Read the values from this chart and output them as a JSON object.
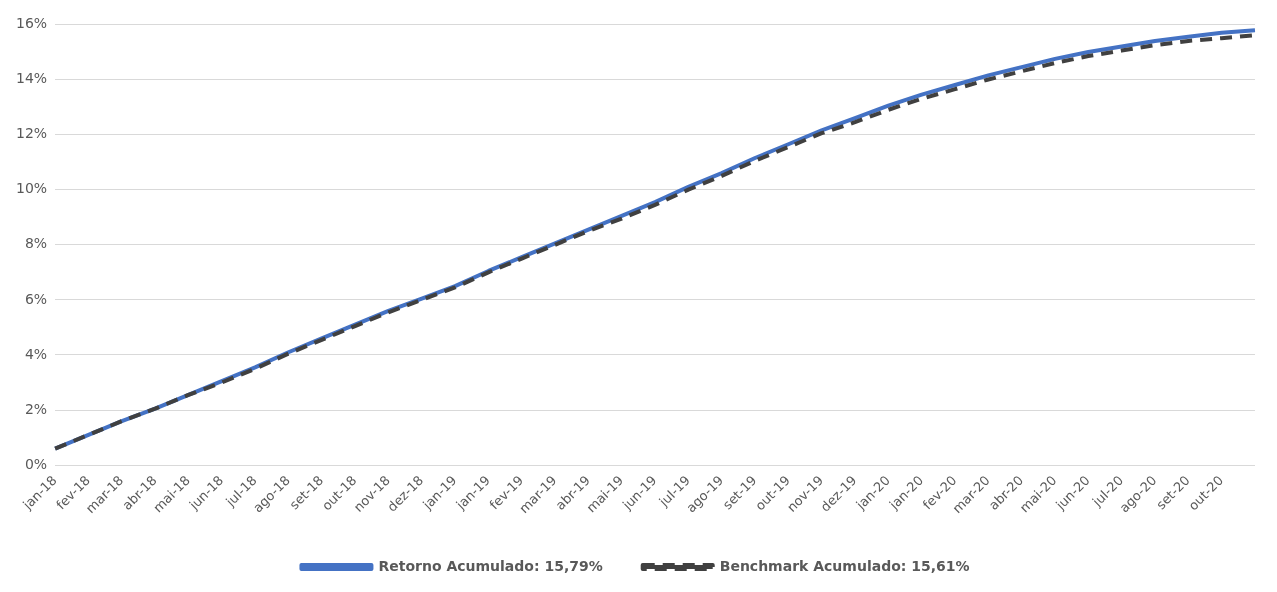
{
  "chart_data": {
    "type": "line",
    "categories": [
      "jan-18",
      "fev-18",
      "mar-18",
      "abr-18",
      "mai-18",
      "jun-18",
      "jul-18",
      "ago-18",
      "set-18",
      "out-18",
      "nov-18",
      "dez-18",
      "jan-19",
      "jan-19",
      "fev-19",
      "mar-19",
      "abr-19",
      "mai-19",
      "jun-19",
      "jul-19",
      "ago-19",
      "set-19",
      "out-19",
      "nov-19",
      "dez-19",
      "jan-20",
      "jan-20",
      "fev-20",
      "mar-20",
      "abr-20",
      "mai-20",
      "jun-20",
      "jul-20",
      "ago-20",
      "set-20",
      "out-20",
      null
    ],
    "series": [
      {
        "name": "Retorno Acumulado: 15,79%",
        "color": "#4472c4",
        "line_style": "solid",
        "values": [
          0.6,
          1.1,
          1.6,
          2.05,
          2.55,
          3.05,
          3.55,
          4.1,
          4.6,
          5.1,
          5.6,
          6.05,
          6.5,
          7.05,
          7.55,
          8.05,
          8.55,
          9.05,
          9.55,
          10.1,
          10.6,
          11.15,
          11.65,
          12.15,
          12.6,
          13.05,
          13.45,
          13.8,
          14.15,
          14.45,
          14.75,
          15.0,
          15.2,
          15.4,
          15.55,
          15.7,
          15.79
        ]
      },
      {
        "name": "Benchmark Acumulado: 15,61%",
        "color": "#404040",
        "line_style": "dashed",
        "values": [
          0.6,
          1.1,
          1.6,
          2.05,
          2.55,
          3.0,
          3.5,
          4.05,
          4.55,
          5.05,
          5.55,
          6.0,
          6.45,
          7.0,
          7.5,
          8.0,
          8.5,
          8.95,
          9.45,
          10.0,
          10.5,
          11.05,
          11.55,
          12.05,
          12.45,
          12.9,
          13.3,
          13.65,
          14.0,
          14.3,
          14.6,
          14.85,
          15.05,
          15.25,
          15.4,
          15.5,
          15.61
        ]
      }
    ],
    "ylim": [
      0,
      16
    ],
    "yticks": [
      {
        "value": 0,
        "label": "0%"
      },
      {
        "value": 2,
        "label": "2%"
      },
      {
        "value": 4,
        "label": "4%"
      },
      {
        "value": 6,
        "label": "6%"
      },
      {
        "value": 8,
        "label": "8%"
      },
      {
        "value": 10,
        "label": "10%"
      },
      {
        "value": 12,
        "label": "12%"
      },
      {
        "value": 14,
        "label": "14%"
      },
      {
        "value": 16,
        "label": "16%"
      }
    ],
    "grid": "y",
    "legend": "bottom",
    "marker": "none"
  }
}
